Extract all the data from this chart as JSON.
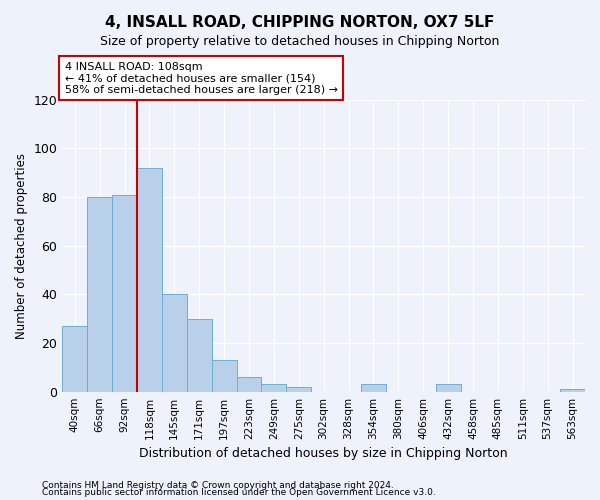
{
  "title": "4, INSALL ROAD, CHIPPING NORTON, OX7 5LF",
  "subtitle": "Size of property relative to detached houses in Chipping Norton",
  "xlabel": "Distribution of detached houses by size in Chipping Norton",
  "ylabel": "Number of detached properties",
  "categories": [
    "40sqm",
    "66sqm",
    "92sqm",
    "118sqm",
    "145sqm",
    "171sqm",
    "197sqm",
    "223sqm",
    "249sqm",
    "275sqm",
    "302sqm",
    "328sqm",
    "354sqm",
    "380sqm",
    "406sqm",
    "432sqm",
    "458sqm",
    "485sqm",
    "511sqm",
    "537sqm",
    "563sqm"
  ],
  "values": [
    27,
    80,
    81,
    92,
    40,
    30,
    13,
    6,
    3,
    2,
    0,
    0,
    3,
    0,
    0,
    3,
    0,
    0,
    0,
    0,
    1
  ],
  "bar_color": "#b8d0ea",
  "bar_edge_color": "#6aaed6",
  "vline_index": 3,
  "vline_color": "#cc0000",
  "annotation_text": "4 INSALL ROAD: 108sqm\n← 41% of detached houses are smaller (154)\n58% of semi-detached houses are larger (218) →",
  "annotation_box_color": "white",
  "annotation_box_edge_color": "#cc0000",
  "ylim": [
    0,
    120
  ],
  "yticks": [
    0,
    20,
    40,
    60,
    80,
    100,
    120
  ],
  "footer1": "Contains HM Land Registry data © Crown copyright and database right 2024.",
  "footer2": "Contains public sector information licensed under the Open Government Licence v3.0.",
  "bg_color": "#eef2fb",
  "plot_bg_color": "#eef2fb",
  "title_fontsize": 11,
  "subtitle_fontsize": 9
}
